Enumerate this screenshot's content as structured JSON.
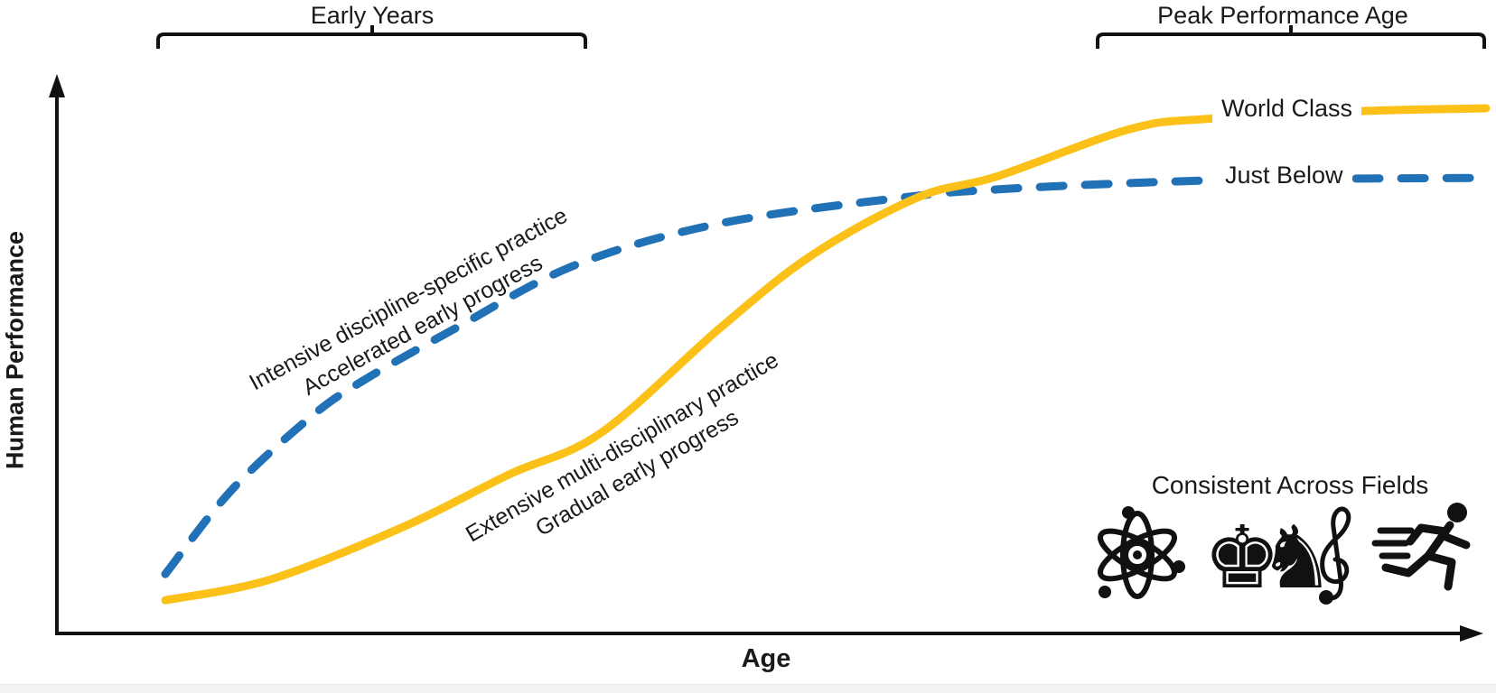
{
  "header": {
    "early_years_label": "Early Years",
    "peak_age_label": "Peak Performance Age"
  },
  "axes": {
    "x_label": "Age",
    "y_label": "Human Performance"
  },
  "curves": {
    "world_class": {
      "label": "World Class",
      "color": "#FBC118",
      "annotation_line1": "Extensive multi-disciplinary practice",
      "annotation_line2": "Gradual early progress"
    },
    "just_below": {
      "label": "Just Below",
      "color": "#2071B5",
      "annotation_line1": "Intensive discipline-specific practice",
      "annotation_line2": "Accelerated early progress"
    }
  },
  "footer": {
    "consistent_label": "Consistent Across Fields",
    "chess_glyphs": "♚♞",
    "icons": [
      "atom-icon",
      "chess-icon",
      "treble-clef-icon",
      "runner-icon"
    ]
  },
  "chart_data": {
    "type": "line",
    "title": "",
    "xlabel": "Age",
    "ylabel": "Human Performance",
    "grid": false,
    "axes_numeric": false,
    "x_range_conceptual": [
      0,
      100
    ],
    "y_range_conceptual": [
      0,
      100
    ],
    "series": [
      {
        "name": "World Class",
        "style": "solid",
        "color": "#FBC118",
        "x": [
          0,
          8,
          18,
          26,
          33,
          42,
          49,
          57,
          63,
          73,
          79,
          91,
          100
        ],
        "y": [
          6,
          10,
          20,
          30,
          38,
          58,
          72,
          83,
          87,
          96,
          98,
          99.5,
          100
        ]
      },
      {
        "name": "Just Below",
        "style": "dashed",
        "color": "#2071B5",
        "x": [
          0,
          5,
          11,
          15,
          22,
          31,
          42,
          56,
          63,
          73,
          83,
          100
        ],
        "y": [
          11,
          27,
          41,
          48,
          58,
          70,
          78,
          83,
          84.5,
          85.7,
          86.4,
          86.7
        ]
      }
    ],
    "annotations": [
      {
        "target": "Just Below",
        "lines": [
          "Intensive discipline-specific practice",
          "Accelerated early progress"
        ]
      },
      {
        "target": "World Class",
        "lines": [
          "Extensive multi-disciplinary practice",
          "Gradual early progress"
        ]
      }
    ],
    "top_brackets": [
      {
        "label": "Early Years",
        "x_span_conceptual": [
          0,
          32
        ]
      },
      {
        "label": "Peak Performance Age",
        "x_span_conceptual": [
          71,
          100
        ]
      }
    ],
    "legend_note": "Consistent Across Fields",
    "crossover_note": "curves intersect late; World Class ends above Just Below"
  }
}
